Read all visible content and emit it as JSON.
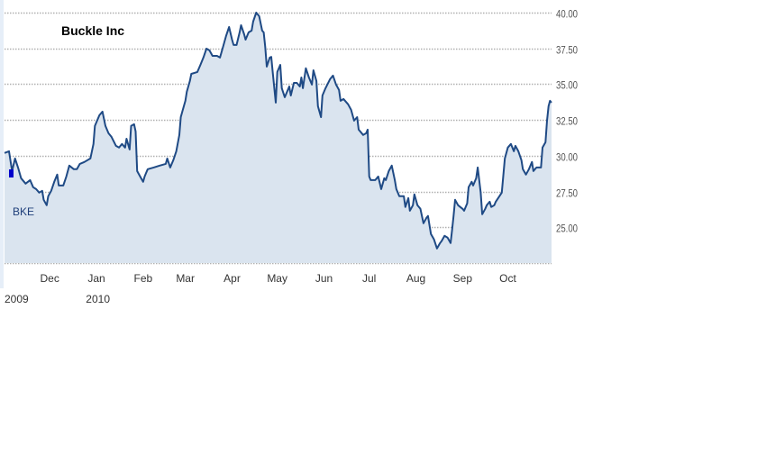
{
  "chart_data": {
    "type": "area",
    "title": "Buckle Inc",
    "legend": {
      "label": "BKE",
      "color": "#0000cc",
      "placement": "left"
    },
    "xlabel": "",
    "ylabel": "",
    "x_unit": "days since 2009-11-01",
    "xlim": [
      0,
      363
    ],
    "ylim": [
      22.5,
      40
    ],
    "grid": true,
    "y_axis_side": "right",
    "y_ticks": [
      {
        "value": 40,
        "label": "40.00"
      },
      {
        "value": 37.5,
        "label": "37.50"
      },
      {
        "value": 35,
        "label": "35.00"
      },
      {
        "value": 32.5,
        "label": "32.50"
      },
      {
        "value": 30,
        "label": "30.00"
      },
      {
        "value": 27.5,
        "label": "27.50"
      },
      {
        "value": 25,
        "label": "25.00"
      },
      {
        "value": 22.5,
        "label": ""
      }
    ],
    "x_ticks": [
      {
        "value": 30,
        "label": "Dec"
      },
      {
        "value": 61,
        "label": "Jan"
      },
      {
        "value": 92,
        "label": "Feb"
      },
      {
        "value": 120,
        "label": "Mar"
      },
      {
        "value": 151,
        "label": "Apr"
      },
      {
        "value": 181,
        "label": "May"
      },
      {
        "value": 212,
        "label": "Jun"
      },
      {
        "value": 242,
        "label": "Jul"
      },
      {
        "value": 273,
        "label": "Aug"
      },
      {
        "value": 304,
        "label": "Sep"
      },
      {
        "value": 334,
        "label": "Oct"
      }
    ],
    "year_labels": [
      {
        "value": 0,
        "label": "2009"
      },
      {
        "value": 54,
        "label": "2010"
      }
    ],
    "colors": {
      "line": "#1f4a85",
      "fill": "#dae4ef",
      "grid": "#b0b0b0"
    },
    "series": [
      {
        "name": "BKE",
        "x": [
          0,
          3,
          5,
          7,
          9,
          11,
          14,
          17,
          19,
          21,
          23,
          25,
          26,
          28,
          29,
          31,
          33,
          35,
          36,
          39,
          41,
          43,
          46,
          48,
          50,
          53,
          55,
          57,
          59,
          60,
          63,
          65,
          67,
          69,
          71,
          74,
          76,
          78,
          80,
          81,
          83,
          84,
          86,
          87,
          88,
          90,
          92,
          93,
          94,
          95,
          99,
          103,
          107,
          108,
          110,
          112,
          114,
          116,
          117,
          118,
          120,
          121,
          123,
          124,
          128,
          130,
          132,
          134,
          136,
          138,
          141,
          143,
          145,
          147,
          149,
          151,
          152,
          154,
          156,
          157,
          159,
          160,
          162,
          164,
          165,
          167,
          169,
          171,
          172,
          173,
          174,
          176,
          177,
          178,
          180,
          181,
          183,
          184,
          186,
          189,
          190,
          192,
          194,
          196,
          197,
          198,
          200,
          202,
          204,
          205,
          207,
          208,
          210,
          211,
          213,
          216,
          218,
          220,
          222,
          223,
          225,
          228,
          230,
          232,
          234,
          235,
          238,
          240,
          241,
          242,
          243,
          246,
          248,
          250,
          252,
          253,
          255,
          257,
          259,
          260,
          262,
          265,
          266,
          268,
          269,
          271,
          272,
          274,
          276,
          278,
          280,
          281,
          283,
          285,
          287,
          289,
          290,
          292,
          294,
          296,
          297,
          298,
          299,
          301,
          304,
          305,
          307,
          308,
          310,
          311,
          313,
          314,
          316,
          317,
          319,
          320,
          322,
          323,
          325,
          326,
          330,
          332,
          334,
          336,
          338,
          339,
          341,
          343,
          344,
          346,
          348,
          350,
          351,
          353,
          356,
          357,
          359,
          360,
          361,
          362,
          363
        ],
        "values": [
          30.19,
          30.31,
          28.93,
          29.81,
          29.18,
          28.43,
          28.05,
          28.3,
          27.8,
          27.67,
          27.42,
          27.55,
          26.92,
          26.54,
          27.17,
          27.55,
          28.18,
          28.68,
          27.92,
          27.92,
          28.55,
          29.31,
          29.06,
          29.06,
          29.43,
          29.56,
          29.69,
          29.81,
          30.82,
          32.08,
          32.83,
          33.08,
          32.08,
          31.57,
          31.32,
          30.69,
          30.57,
          30.82,
          30.57,
          31.19,
          30.44,
          32.08,
          32.2,
          31.7,
          28.93,
          28.55,
          28.18,
          28.55,
          28.81,
          29.06,
          29.18,
          29.31,
          29.43,
          29.81,
          29.18,
          29.69,
          30.31,
          31.45,
          32.7,
          33.08,
          33.84,
          34.47,
          35.22,
          35.72,
          35.85,
          36.35,
          36.86,
          37.48,
          37.36,
          36.98,
          36.98,
          36.86,
          37.61,
          38.36,
          38.99,
          38.11,
          37.74,
          37.74,
          38.62,
          39.12,
          38.49,
          38.11,
          38.62,
          38.74,
          39.37,
          40.0,
          39.75,
          38.74,
          38.62,
          37.61,
          36.23,
          36.86,
          36.9,
          35.85,
          33.71,
          35.85,
          36.35,
          34.72,
          34.09,
          34.84,
          34.21,
          35.09,
          35.09,
          34.84,
          35.47,
          34.72,
          36.11,
          35.47,
          34.97,
          35.97,
          35.22,
          33.46,
          32.7,
          34.21,
          34.72,
          35.35,
          35.6,
          34.97,
          34.59,
          33.84,
          33.96,
          33.59,
          33.21,
          32.45,
          32.7,
          31.82,
          31.45,
          31.57,
          31.82,
          28.55,
          28.3,
          28.3,
          28.55,
          27.67,
          28.43,
          28.3,
          28.93,
          29.31,
          28.3,
          27.67,
          27.17,
          27.17,
          26.42,
          27.04,
          26.16,
          26.54,
          27.3,
          26.54,
          26.29,
          25.28,
          25.66,
          25.79,
          24.53,
          24.15,
          23.52,
          23.9,
          24.03,
          24.4,
          24.28,
          23.9,
          24.78,
          25.79,
          26.92,
          26.54,
          26.29,
          26.16,
          26.67,
          27.8,
          28.18,
          27.92,
          28.43,
          29.18,
          27.42,
          25.91,
          26.29,
          26.54,
          26.79,
          26.42,
          26.54,
          26.79,
          27.42,
          29.81,
          30.57,
          30.82,
          30.31,
          30.69,
          30.31,
          29.69,
          29.06,
          28.68,
          29.06,
          29.56,
          28.93,
          29.18,
          29.18,
          30.57,
          30.94,
          32.45,
          33.46,
          33.84,
          33.71
        ]
      }
    ]
  }
}
